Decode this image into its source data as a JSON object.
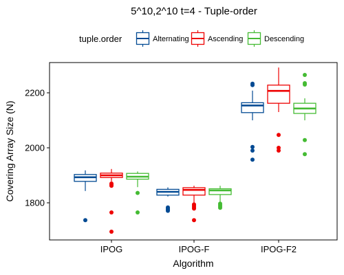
{
  "chart_data": {
    "type": "box",
    "title": "5^10,2^10 t=4 - Tuple-order",
    "xlabel": "Algorithm",
    "ylabel": "Covering Array Size (N)",
    "ylim": [
      1665,
      2310
    ],
    "yticks": [
      1800,
      2000,
      2200
    ],
    "grid": false,
    "legend_position": "top",
    "legend_title": "tuple.order",
    "categories": [
      "IPOG",
      "IPOG-F",
      "IPOG-F2"
    ],
    "series": [
      {
        "name": "Alternating",
        "color": "#024a93",
        "boxes": [
          {
            "whisker_low": 1843,
            "q1": 1878,
            "median": 1893,
            "q3": 1903,
            "whisker_high": 1918,
            "outliers": [
              1737
            ]
          },
          {
            "whisker_low": 1823,
            "q1": 1828,
            "median": 1840,
            "q3": 1849,
            "whisker_high": 1856,
            "outliers": [
              1771,
              1775,
              1779,
              1783
            ]
          },
          {
            "whisker_low": 2100,
            "q1": 2128,
            "median": 2154,
            "q3": 2164,
            "whisker_high": 2208,
            "outliers": [
              2228,
              2233,
              1957,
              1990,
              2003
            ]
          }
        ]
      },
      {
        "name": "Ascending",
        "color": "#ee0000",
        "boxes": [
          {
            "whisker_low": 1878,
            "q1": 1892,
            "median": 1900,
            "q3": 1908,
            "whisker_high": 1923,
            "outliers": [
              1862,
              1866,
              1870,
              1765,
              1695
            ]
          },
          {
            "whisker_low": 1800,
            "q1": 1828,
            "median": 1847,
            "q3": 1855,
            "whisker_high": 1862,
            "outliers": [
              1794,
              1789,
              1784,
              1779,
              1737
            ]
          },
          {
            "whisker_low": 2130,
            "q1": 2162,
            "median": 2207,
            "q3": 2228,
            "whisker_high": 2292,
            "outliers": [
              2047,
              2000,
              1990
            ]
          }
        ]
      },
      {
        "name": "Descending",
        "color": "#44bb33",
        "boxes": [
          {
            "whisker_low": 1857,
            "q1": 1886,
            "median": 1895,
            "q3": 1907,
            "whisker_high": 1914,
            "outliers": [
              1836,
              1765
            ]
          },
          {
            "whisker_low": 1800,
            "q1": 1830,
            "median": 1845,
            "q3": 1851,
            "whisker_high": 1862,
            "outliers": [
              1797,
              1792,
              1787,
              1782
            ]
          },
          {
            "whisker_low": 2100,
            "q1": 2125,
            "median": 2143,
            "q3": 2162,
            "whisker_high": 2180,
            "outliers": [
              2230,
              2235,
              2265,
              2028,
              1977
            ]
          }
        ]
      }
    ]
  }
}
